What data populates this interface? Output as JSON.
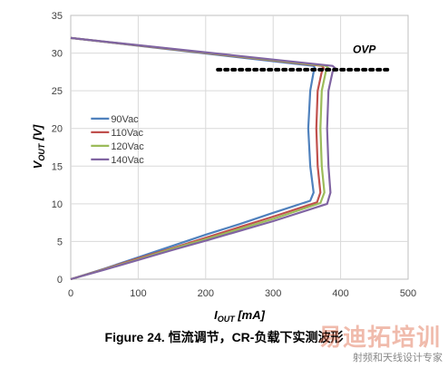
{
  "chart_data": {
    "type": "line",
    "title": "",
    "xlabel": "I_OUT [mA]",
    "ylabel": "V_OUT [V]",
    "xlim": [
      0,
      500
    ],
    "ylim": [
      0,
      35
    ],
    "xticks": [
      0,
      100,
      200,
      300,
      400,
      500
    ],
    "yticks": [
      0,
      5,
      10,
      15,
      20,
      25,
      30,
      35
    ],
    "grid": true,
    "legend_position": "left-middle",
    "series": [
      {
        "name": "90Vac",
        "color": "#4f81bd",
        "x": [
          0,
          50,
          100,
          150,
          200,
          250,
          300,
          355,
          360,
          355,
          352,
          355,
          360,
          362,
          360,
          0
        ],
        "y": [
          0,
          1.4,
          2.9,
          4.4,
          5.9,
          7.3,
          8.8,
          10.4,
          11.5,
          15,
          20,
          25,
          27.5,
          28,
          28.3,
          32
        ]
      },
      {
        "name": "110Vac",
        "color": "#c0504d",
        "x": [
          0,
          50,
          100,
          150,
          200,
          250,
          300,
          365,
          370,
          366,
          364,
          366,
          372,
          375,
          372,
          0
        ],
        "y": [
          0,
          1.35,
          2.75,
          4.1,
          5.5,
          6.9,
          8.3,
          10.2,
          11.5,
          15,
          20,
          25,
          27.5,
          28,
          28.3,
          32
        ]
      },
      {
        "name": "120Vac",
        "color": "#9bbb59",
        "x": [
          0,
          50,
          100,
          150,
          200,
          250,
          300,
          370,
          376,
          372,
          370,
          372,
          378,
          382,
          378,
          0
        ],
        "y": [
          0,
          1.3,
          2.65,
          4.0,
          5.3,
          6.65,
          8.0,
          10.1,
          11.5,
          15,
          20,
          25,
          27.5,
          28,
          28.3,
          32
        ]
      },
      {
        "name": "140Vac",
        "color": "#8064a2",
        "x": [
          0,
          50,
          100,
          150,
          200,
          250,
          300,
          380,
          385,
          382,
          380,
          382,
          388,
          392,
          388,
          0
        ],
        "y": [
          0,
          1.25,
          2.55,
          3.85,
          5.1,
          6.4,
          7.7,
          10.0,
          11.5,
          15,
          20,
          25,
          27.5,
          28,
          28.3,
          32
        ]
      }
    ],
    "annotations": [
      {
        "text": "OVP",
        "x": 418,
        "y": 30
      }
    ],
    "reference_line": {
      "y": 27.8,
      "x_start": 218,
      "x_end": 475,
      "style": "dotted",
      "color": "#000000"
    }
  },
  "caption": "Figure 24. 恒流调节，CR-负载下实测波形",
  "watermark": {
    "main": "易迪拓培训",
    "sub": "射频和天线设计专家"
  }
}
